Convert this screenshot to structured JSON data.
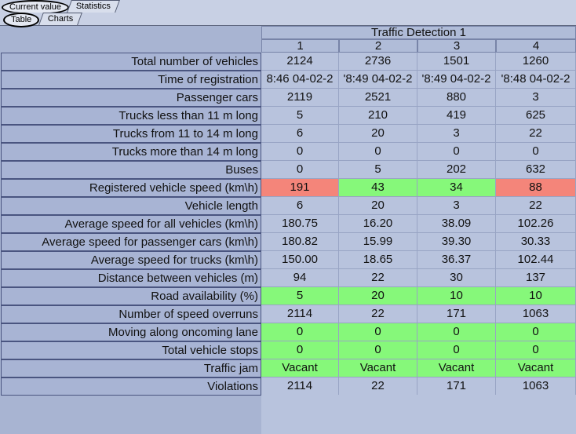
{
  "tabs_top": [
    {
      "label": "Current value",
      "selected": true
    },
    {
      "label": "Statistics",
      "selected": false
    }
  ],
  "tabs_sub": [
    {
      "label": "Table",
      "selected": true
    },
    {
      "label": "Charts",
      "selected": false
    }
  ],
  "group_title": "Traffic Detection 1",
  "columns": [
    "1",
    "2",
    "3",
    "4"
  ],
  "colors": {
    "alert": "#f4857a",
    "ok": "#86f87a"
  },
  "rows": [
    {
      "label": "Total number of vehicles",
      "values": [
        "2124",
        "2736",
        "1501",
        "1260"
      ]
    },
    {
      "label": "Time of registration",
      "values": [
        "8:46 04-02-2",
        "'8:49 04-02-2",
        "'8:49 04-02-2",
        "'8:48 04-02-2"
      ]
    },
    {
      "label": "Passenger cars",
      "values": [
        "2119",
        "2521",
        "880",
        "3"
      ]
    },
    {
      "label": "Trucks less than 11 m long",
      "values": [
        "5",
        "210",
        "419",
        "625"
      ]
    },
    {
      "label": "Trucks from 11 to 14 m long",
      "values": [
        "6",
        "20",
        "3",
        "22"
      ]
    },
    {
      "label": "Trucks more than 14 m long",
      "values": [
        "0",
        "0",
        "0",
        "0"
      ]
    },
    {
      "label": "Buses",
      "values": [
        "0",
        "5",
        "202",
        "632"
      ]
    },
    {
      "label": "Registered vehicle speed (km\\h)",
      "values": [
        "191",
        "43",
        "34",
        "88"
      ],
      "status": [
        "red",
        "green",
        "green",
        "red"
      ]
    },
    {
      "label": "Vehicle length",
      "values": [
        "6",
        "20",
        "3",
        "22"
      ]
    },
    {
      "label": "Average speed for all vehicles (km\\h)",
      "values": [
        "180.75",
        "16.20",
        "38.09",
        "102.26"
      ]
    },
    {
      "label": "Average speed for passenger cars (km\\h)",
      "values": [
        "180.82",
        "15.99",
        "39.30",
        "30.33"
      ]
    },
    {
      "label": "Average speed for trucks (km\\h)",
      "values": [
        "150.00",
        "18.65",
        "36.37",
        "102.44"
      ]
    },
    {
      "label": "Distance between vehicles (m)",
      "values": [
        "94",
        "22",
        "30",
        "137"
      ]
    },
    {
      "label": "Road availability (%)",
      "values": [
        "5",
        "20",
        "10",
        "10"
      ],
      "status": [
        "green",
        "green",
        "green",
        "green"
      ]
    },
    {
      "label": "Number of speed overruns",
      "values": [
        "2114",
        "22",
        "171",
        "1063"
      ]
    },
    {
      "label": "Moving along oncoming lane",
      "values": [
        "0",
        "0",
        "0",
        "0"
      ],
      "status": [
        "green",
        "green",
        "green",
        "green"
      ]
    },
    {
      "label": "Total vehicle stops",
      "values": [
        "0",
        "0",
        "0",
        "0"
      ],
      "status": [
        "green",
        "green",
        "green",
        "green"
      ]
    },
    {
      "label": "Traffic jam",
      "values": [
        "Vacant",
        "Vacant",
        "Vacant",
        "Vacant"
      ],
      "status": [
        "green",
        "green",
        "green",
        "green"
      ]
    },
    {
      "label": "Violations",
      "values": [
        "2114",
        "22",
        "171",
        "1063"
      ]
    }
  ]
}
